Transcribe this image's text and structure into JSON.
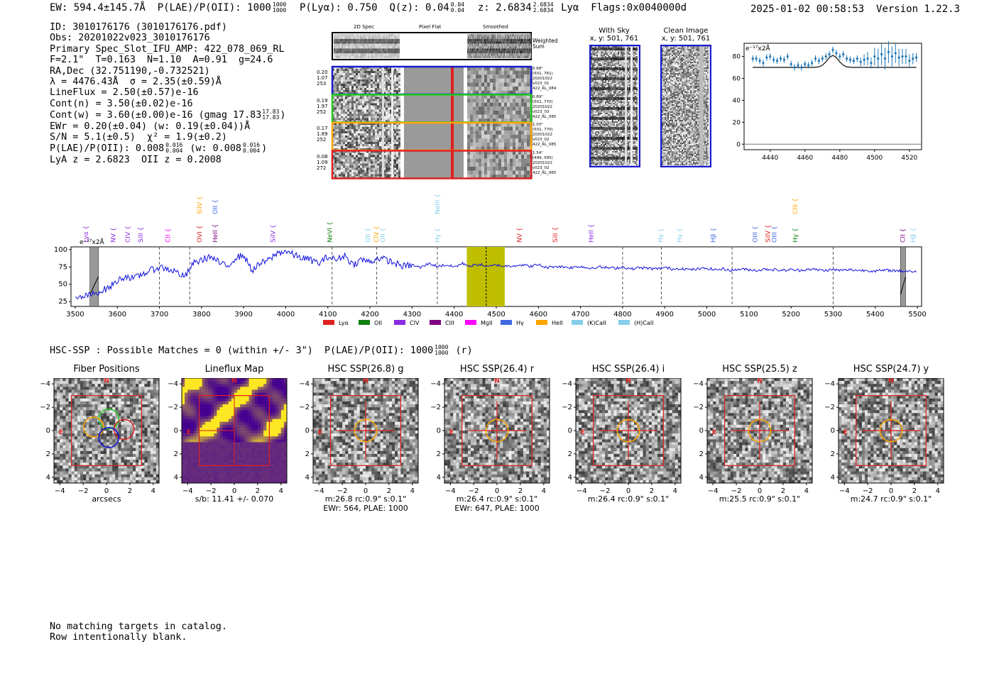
{
  "header": {
    "left": "EW: 594.4±145.7Å  P(LAE)/P(OII): 1000 1000/1000  P(Lyα): 0.750  Q(z): 0.04 0.04/0.04  z: 2.6834 2.6834/2.6834 Lyα  Flags:0x0040000d",
    "ew": "EW: 594.4±145.7Å",
    "plae": "P(LAE)/P(OII): 1000",
    "plae_hi": "1000",
    "plae_lo": "1000",
    "plya": "P(Lyα): 0.750",
    "qz": "Q(z): 0.04",
    "qz_hi": "0.04",
    "qz_lo": "0.04",
    "z": "z: 2.6834",
    "z_hi": "2.6834",
    "z_lo": "2.6834",
    "line": "Lyα",
    "flags": "Flags:0x0040000d",
    "datetime": "2025-01-02 00:58:53",
    "version": "Version 1.22.3"
  },
  "info": {
    "id": "ID: 3010176176 (3010176176.pdf)",
    "obs": "Obs: 20201022v023_3010176176",
    "primary": "Primary Spec_Slot_IFU_AMP: 422_078_069_RL",
    "fwhm": "F=2.1\"  T=0.163  N=1.10  A=0.91  g=24.6",
    "radec": "RA,Dec (32.751190,-0.732521)",
    "lambda": "λ = 4476.43Å  σ = 2.35(±0.59)Å",
    "lineflux": "LineFlux = 2.50(±0.57)e-16",
    "contn": "Cont(n) = 3.50(±0.02)e-16",
    "contw": "Cont(w) = 3.60(±0.00)e-16 (gmag 17.83",
    "contw_hi": "17.83",
    "contw_lo": "17.83",
    "ewr": "EWr = 0.20(±0.04) (w: 0.19(±0.04))Å",
    "sn": "S/N = 5.1(±0.5)  χ² = 1.9(±0.2)",
    "plae2": "P(LAE)/P(OII): 0.008",
    "plae2_hi": "0.016",
    "plae2_lo": "0.004",
    "plae2_w": "(w: 0.008",
    "plae2_w_hi": "0.016",
    "plae2_w_lo": "0.004",
    "lyaz": "LyA z = 2.6823  OII z = 0.2008"
  },
  "spec2d": {
    "col_labels": [
      "2D Spec",
      "Pixel Flat",
      "Smoothed"
    ],
    "weighted_sum": "Weighted\nSum",
    "rows": [
      {
        "left": "0.20\n1.07\n253",
        "right": "0.68\"\n(501, 761)\n20201022\nv023_01\n422_RL_084",
        "color": "#1a1acc"
      },
      {
        "left": "0.19\n1.97\n252",
        "right": "0.89\"\n(501, 770)\n20201022\nv023_03\n422_RL_085",
        "color": "#22cc22"
      },
      {
        "left": "0.17\n1.89\n252",
        "right": "1.03\"\n(501, 770)\n20201022\nv023_02\n422_RL_085",
        "color": "#ffa500"
      },
      {
        "left": "0.08\n1.09\n272",
        "right": "1.54\"\n(499, 585)\n20201022\nv023_02\n422_RL_065",
        "color": "#e02020"
      }
    ]
  },
  "withsky": {
    "title": "With Sky",
    "coords": "x, y: 501, 761"
  },
  "cleanimage": {
    "title": "Clean Image",
    "coords": "x, y: 501, 761"
  },
  "zoom_chart": {
    "unit_label": "e⁻¹⁷x2Å",
    "xticks": [
      "4440",
      "4460",
      "4480",
      "4500",
      "4520"
    ],
    "yticks": [
      "0",
      "20",
      "40",
      "60",
      "80"
    ]
  },
  "full_spectrum": {
    "unit_label": "e⁻¹⁷x2Å",
    "xticks": [
      "3500",
      "3600",
      "3700",
      "3800",
      "3900",
      "4000",
      "4100",
      "4200",
      "4300",
      "4400",
      "4500",
      "4600",
      "4700",
      "4800",
      "4900",
      "5000",
      "5100",
      "5200",
      "5300",
      "5400",
      "5500"
    ],
    "yticks": [
      "25",
      "50",
      "75",
      "100"
    ],
    "legend": [
      {
        "label": "Lyα",
        "color": "#e02020"
      },
      {
        "label": "OII",
        "color": "#108010"
      },
      {
        "label": "CIV",
        "color": "#8a2be2"
      },
      {
        "label": "CIII",
        "color": "#800080"
      },
      {
        "label": "MgII",
        "color": "#ff00ff"
      },
      {
        "label": "Hγ",
        "color": "#4169e1"
      },
      {
        "label": "HeII",
        "color": "#ffa500"
      },
      {
        "label": "(K)CaII",
        "color": "#87ceeb"
      },
      {
        "label": "(H)CaII",
        "color": "#87ceeb"
      }
    ],
    "line_labels": [
      {
        "t": "Lyα",
        "x": 3525,
        "row": 1,
        "c": "#8a2be2"
      },
      {
        "t": "NV",
        "x": 3590,
        "row": 1,
        "c": "#8a2be2"
      },
      {
        "t": "CIV",
        "x": 3625,
        "row": 1,
        "c": "#8a2be2"
      },
      {
        "t": "SiII",
        "x": 3655,
        "row": 1,
        "c": "#8a2be2"
      },
      {
        "t": "CII",
        "x": 3720,
        "row": 1,
        "c": "#ff00ff"
      },
      {
        "t": "SiIV",
        "x": 3795,
        "row": 0,
        "c": "#ffa500"
      },
      {
        "t": "OII",
        "x": 3832,
        "row": 0,
        "c": "#4169e1"
      },
      {
        "t": "OVI",
        "x": 3795,
        "row": 1,
        "c": "#e02020"
      },
      {
        "t": "HeII",
        "x": 3832,
        "row": 1,
        "c": "#800080"
      },
      {
        "t": "SiIV",
        "x": 3970,
        "row": 1,
        "c": "#8a2be2"
      },
      {
        "t": "NeVI",
        "x": 4105,
        "row": 1,
        "c": "#108010"
      },
      {
        "t": "OII",
        "x": 4195,
        "row": 1,
        "c": "#87ceeb"
      },
      {
        "t": "CIV",
        "x": 4215,
        "row": 1,
        "c": "#ffa500"
      },
      {
        "t": "OII",
        "x": 4230,
        "row": 1,
        "c": "#87ceeb"
      },
      {
        "t": "NeIII",
        "x": 4360,
        "row": 0,
        "c": "#87ceeb"
      },
      {
        "t": "Hγ",
        "x": 4360,
        "row": 1,
        "c": "#87ceeb"
      },
      {
        "t": "NV",
        "x": 4555,
        "row": 1,
        "c": "#e02020"
      },
      {
        "t": "SiII",
        "x": 4640,
        "row": 1,
        "c": "#e02020"
      },
      {
        "t": "HeII",
        "x": 4725,
        "row": 1,
        "c": "#8a2be2"
      },
      {
        "t": "Hγ",
        "x": 4890,
        "row": 1,
        "c": "#87ceeb"
      },
      {
        "t": "Hγ",
        "x": 4935,
        "row": 1,
        "c": "#87ceeb"
      },
      {
        "t": "Hβ",
        "x": 5015,
        "row": 1,
        "c": "#4169e1"
      },
      {
        "t": "OIII",
        "x": 5115,
        "row": 1,
        "c": "#4169e1"
      },
      {
        "t": "SiIV",
        "x": 5145,
        "row": 1,
        "c": "#e02020"
      },
      {
        "t": "OIII",
        "x": 5160,
        "row": 1,
        "c": "#4169e1"
      },
      {
        "t": "CIII",
        "x": 5210,
        "row": 0,
        "c": "#ffa500"
      },
      {
        "t": "Hγ",
        "x": 5210,
        "row": 1,
        "c": "#108010"
      },
      {
        "t": "CII",
        "x": 5465,
        "row": 1,
        "c": "#800080"
      },
      {
        "t": "Hβ",
        "x": 5490,
        "row": 1,
        "c": "#87ceeb"
      }
    ]
  },
  "hsc": {
    "summary": "HSC-SSP : Possible Matches = 0 (within +/- 3\")  P(LAE)/P(OII): 1000",
    "summary_hi": "1000",
    "summary_lo": "1000",
    "summary_tail": "(r)",
    "ticks": [
      "−4",
      "−2",
      "0",
      "2",
      "4"
    ],
    "panels": [
      {
        "title": "Fiber Positions",
        "sub1": "arcsecs",
        "sub2": ""
      },
      {
        "title": "Lineflux Map",
        "sub1": "s/b: 11.41 +/- 0.070",
        "sub2": ""
      },
      {
        "title": "HSC SSP(26.8) g",
        "sub1": "m:26.8 rc:0.9\"  s:0.1\"",
        "sub2": "EWr: 564, PLAE: 1000"
      },
      {
        "title": "HSC SSP(26.4) r",
        "sub1": "m:26.4 rc:0.9\"  s:0.1\"",
        "sub2": "EWr: 647, PLAE: 1000"
      },
      {
        "title": "HSC SSP(26.4) i",
        "sub1": "m:26.4 rc:0.9\"  s:0.1\"",
        "sub2": ""
      },
      {
        "title": "HSC SSP(25.5) z",
        "sub1": "m:25.5 rc:0.9\"  s:0.1\"",
        "sub2": ""
      },
      {
        "title": "HSC SSP(24.7) y",
        "sub1": "m:24.7 rc:0.9\"  s:0.1\"",
        "sub2": ""
      }
    ],
    "n_label": "N",
    "e_label": "E"
  },
  "footer": {
    "line1": "No matching targets in catalog.",
    "line2": "Row intentionally blank."
  },
  "chart_data": [
    {
      "type": "scatter",
      "title": "",
      "unit_label": "e⁻¹⁷x2Å",
      "xlim": [
        4425,
        4527
      ],
      "ylim": [
        -5,
        92
      ],
      "x": [
        4430,
        4432,
        4434,
        4436,
        4438,
        4440,
        4442,
        4444,
        4446,
        4448,
        4450,
        4452,
        4454,
        4456,
        4458,
        4460,
        4462,
        4464,
        4466,
        4468,
        4470,
        4472,
        4474,
        4476,
        4478,
        4480,
        4482,
        4484,
        4486,
        4488,
        4490,
        4492,
        4494,
        4496,
        4498,
        4500,
        4502,
        4504,
        4506,
        4508,
        4510,
        4512,
        4514,
        4516,
        4518,
        4520,
        4522,
        4524
      ],
      "y": [
        78,
        78,
        76,
        74,
        79,
        80,
        77,
        76,
        78,
        77,
        80,
        73,
        70,
        72,
        70,
        73,
        72,
        74,
        78,
        76,
        78,
        80,
        82,
        86,
        83,
        80,
        82,
        78,
        77,
        76,
        78,
        75,
        77,
        78,
        74,
        80,
        78,
        82,
        78,
        84,
        80,
        83,
        79,
        80,
        80,
        76,
        78,
        79
      ],
      "yerr": [
        3,
        3,
        3,
        3,
        3,
        3,
        3,
        3,
        3,
        3,
        3,
        3,
        3,
        3,
        3,
        3,
        3,
        3,
        3,
        3,
        3,
        3,
        3,
        3,
        3,
        3,
        3,
        3,
        3,
        3,
        3,
        4,
        5,
        6,
        5,
        8,
        9,
        10,
        10,
        10,
        9,
        9,
        8,
        7,
        7,
        6,
        5,
        4
      ],
      "model_x": [
        4430,
        4465,
        4468,
        4470,
        4472,
        4474,
        4476,
        4478,
        4480,
        4482,
        4484,
        4487,
        4524
      ],
      "model_y": [
        70,
        70,
        70.5,
        72,
        75,
        79,
        81,
        79,
        75,
        72,
        70.5,
        70,
        70
      ]
    },
    {
      "type": "line",
      "title": "",
      "unit_label": "e⁻¹⁷x2Å",
      "xlim": [
        3490,
        5510
      ],
      "ylim": [
        18,
        104
      ],
      "x": [
        3500,
        3520,
        3540,
        3560,
        3580,
        3600,
        3620,
        3640,
        3660,
        3680,
        3700,
        3720,
        3740,
        3760,
        3780,
        3800,
        3820,
        3840,
        3860,
        3880,
        3900,
        3920,
        3940,
        3960,
        3980,
        4000,
        4020,
        4040,
        4060,
        4080,
        4100,
        4120,
        4140,
        4160,
        4180,
        4200,
        4220,
        4240,
        4260,
        4280,
        4300,
        4320,
        4340,
        4360,
        4380,
        4400,
        4420,
        4440,
        4460,
        4480,
        4500,
        4520,
        4540,
        4560,
        4580,
        4600,
        4620,
        4640,
        4660,
        4680,
        4700,
        4720,
        4740,
        4760,
        4780,
        4800,
        4820,
        4840,
        4860,
        4880,
        4900,
        4920,
        4940,
        4960,
        4980,
        5000,
        5020,
        5040,
        5060,
        5080,
        5100,
        5120,
        5140,
        5160,
        5180,
        5200,
        5220,
        5240,
        5260,
        5280,
        5300,
        5320,
        5340,
        5360,
        5380,
        5400,
        5420,
        5440,
        5460,
        5480,
        5500
      ],
      "y": [
        28,
        32,
        35,
        40,
        45,
        55,
        62,
        58,
        65,
        70,
        75,
        72,
        68,
        60,
        80,
        85,
        90,
        82,
        75,
        88,
        92,
        70,
        80,
        85,
        95,
        98,
        92,
        88,
        85,
        80,
        90,
        85,
        92,
        78,
        86,
        82,
        88,
        85,
        80,
        76,
        78,
        74,
        80,
        76,
        78,
        75,
        80,
        76,
        79,
        75,
        78,
        76,
        77,
        78,
        76,
        78,
        74,
        76,
        75,
        74,
        76,
        73,
        75,
        74,
        73,
        75,
        72,
        74,
        73,
        72,
        74,
        72,
        73,
        71,
        72,
        73,
        71,
        72,
        70,
        72,
        71,
        70,
        72,
        71,
        70,
        71,
        70,
        72,
        71,
        70,
        71,
        70,
        71,
        70,
        70,
        69,
        70,
        70,
        69,
        69,
        68
      ],
      "highlight_range": [
        4430,
        4520
      ],
      "center_line": 4476,
      "masked_ranges": [
        [
          3535,
          3555
        ],
        [
          5460,
          5472
        ]
      ],
      "dashed_lines": [
        3700,
        3772,
        4110,
        4216,
        4360,
        4800,
        4892,
        5060,
        5300
      ]
    }
  ]
}
